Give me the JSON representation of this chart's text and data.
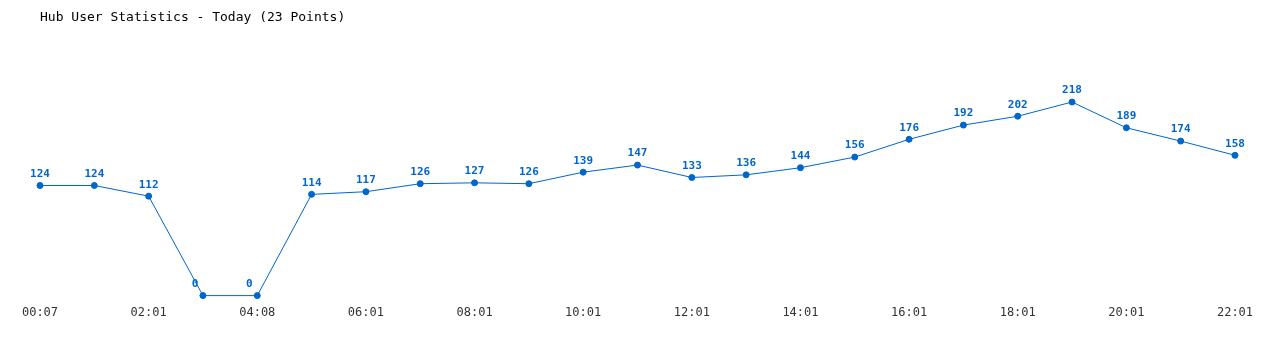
{
  "chart_data": {
    "type": "line",
    "title": "Hub User Statistics - Today (23 Points)",
    "categories": [
      "00:07",
      null,
      "02:01",
      null,
      "04:08",
      null,
      "06:01",
      null,
      "08:01",
      null,
      "10:01",
      null,
      "12:01",
      null,
      "14:01",
      null,
      "16:01",
      null,
      "18:01",
      null,
      "20:01",
      null,
      "22:01"
    ],
    "series": [
      {
        "color": "#0066cc",
        "values": [
          124,
          124,
          112,
          0,
          0,
          114,
          117,
          126,
          127,
          126,
          139,
          147,
          133,
          136,
          144,
          156,
          176,
          192,
          202,
          218,
          189,
          174,
          158
        ]
      }
    ],
    "data_labels": true,
    "marker": "circle",
    "grid": false,
    "legend": false
  }
}
